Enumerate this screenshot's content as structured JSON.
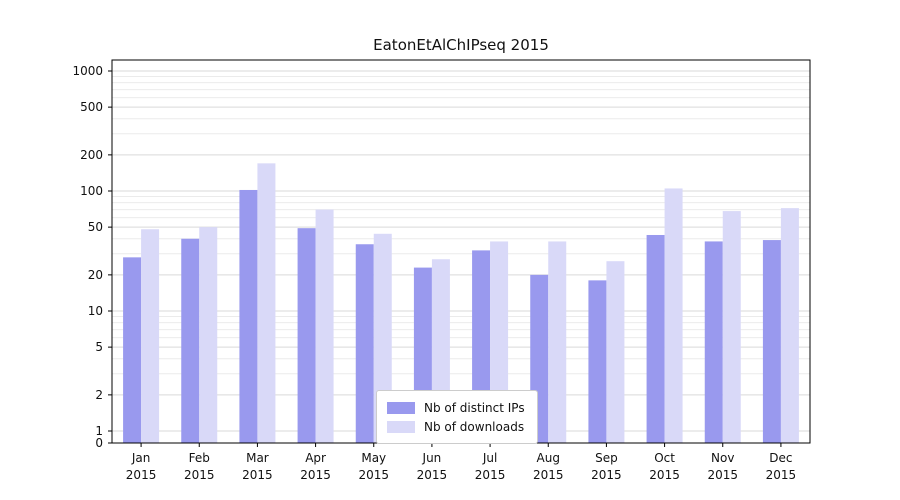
{
  "chart_data": {
    "type": "bar",
    "title": "EatonEtAlChIPseq 2015",
    "categories": [
      "Jan",
      "Feb",
      "Mar",
      "Apr",
      "May",
      "Jun",
      "Jul",
      "Aug",
      "Sep",
      "Oct",
      "Nov",
      "Dec"
    ],
    "year_label": "2015",
    "series": [
      {
        "name": "Nb of distinct IPs",
        "color": "#9999ee",
        "values": [
          28,
          40,
          102,
          49,
          36,
          23,
          32,
          20,
          18,
          43,
          38,
          39
        ]
      },
      {
        "name": "Nb of downloads",
        "color": "#d9d9f8",
        "values": [
          48,
          50,
          170,
          70,
          44,
          27,
          38,
          38,
          26,
          105,
          68,
          72
        ]
      }
    ],
    "xlabel": "",
    "ylabel": "",
    "yscale": "symlog",
    "yticks": [
      0,
      1,
      2,
      5,
      10,
      20,
      50,
      100,
      200,
      500,
      1000
    ],
    "ylim": [
      0,
      1200
    ],
    "grid": true,
    "legend_position": "lower center"
  },
  "colors": {
    "axis": "#000000",
    "major_grid": "#d9d9d9",
    "minor_grid": "#ebebeb",
    "tick_text": "#111111"
  }
}
